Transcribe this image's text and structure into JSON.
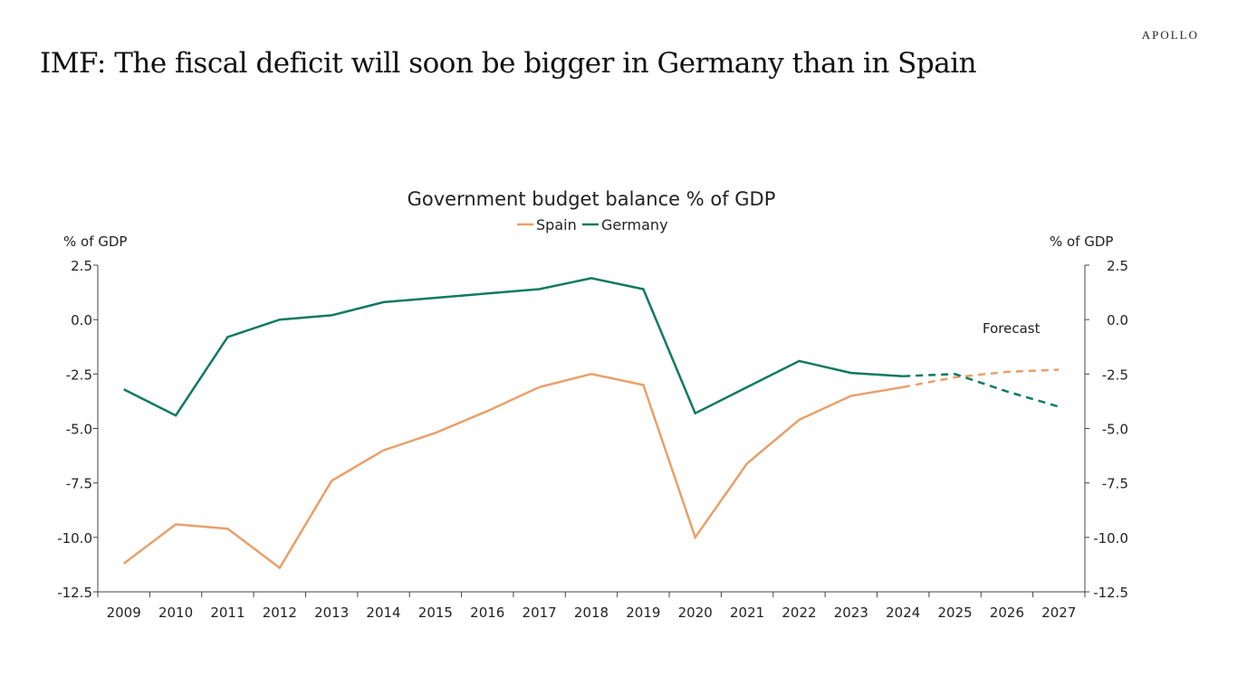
{
  "page": {
    "title": "IMF: The fiscal deficit will soon be bigger in Germany than in Spain",
    "logo": "APOLLO"
  },
  "chart_data": {
    "type": "line",
    "title": "Government budget balance % of GDP",
    "ylabel_left": "% of GDP",
    "ylabel_right": "% of GDP",
    "ylim": [
      -12.5,
      2.5
    ],
    "yticks": [
      "2.5",
      "0.0",
      "-2.5",
      "-5.0",
      "-7.5",
      "-10.0",
      "-12.5"
    ],
    "yticks_values": [
      2.5,
      0,
      -2.5,
      -5,
      -7.5,
      -10,
      -12.5
    ],
    "categories": [
      "2009",
      "2010",
      "2011",
      "2012",
      "2013",
      "2014",
      "2015",
      "2016",
      "2017",
      "2018",
      "2019",
      "2020",
      "2021",
      "2022",
      "2023",
      "2024",
      "2025",
      "2026",
      "2027"
    ],
    "forecast_start": "2024",
    "annotation": "Forecast",
    "legend_placement": "top",
    "grid": false,
    "series": [
      {
        "name": "Spain",
        "color": "#E8A06A",
        "values": [
          -11.2,
          -9.4,
          -9.6,
          -11.4,
          -7.4,
          -6.0,
          -5.2,
          -4.2,
          -3.1,
          -2.5,
          -3.0,
          -10.0,
          -6.6,
          -4.6,
          -3.5,
          -3.1,
          -2.65,
          -2.4,
          -2.3
        ]
      },
      {
        "name": "Germany",
        "color": "#0F7A5F",
        "values": [
          -3.2,
          -4.4,
          -0.8,
          0.0,
          0.2,
          0.8,
          1.0,
          1.2,
          1.4,
          1.9,
          1.4,
          -4.3,
          -3.1,
          -1.9,
          -2.45,
          -2.6,
          -2.5,
          -3.3,
          -4.0
        ]
      }
    ]
  }
}
